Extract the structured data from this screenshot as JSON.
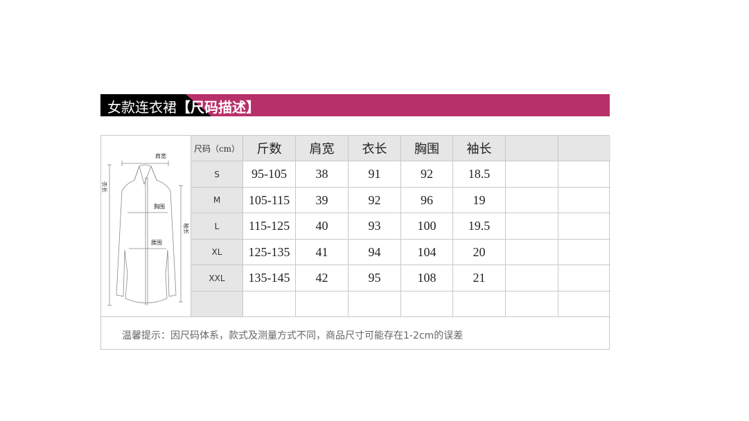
{
  "banner": {
    "title_main": "女款连衣裙",
    "title_bracket": "【尺码描述】",
    "colors": {
      "accent": "#b8306a",
      "dark": "#000000"
    }
  },
  "diagram": {
    "labels": {
      "shoulder": "肩宽",
      "chest": "胸围",
      "waist": "腰围",
      "length": "衣长",
      "sleeve": "袖长"
    }
  },
  "table": {
    "headers": [
      "尺码（cm）",
      "斤数",
      "肩宽",
      "衣长",
      "胸围",
      "袖长",
      "",
      ""
    ],
    "rows": [
      [
        "S",
        "95-105",
        "38",
        "91",
        "92",
        "18.5",
        "",
        ""
      ],
      [
        "M",
        "105-115",
        "39",
        "92",
        "96",
        "19",
        "",
        ""
      ],
      [
        "L",
        "115-125",
        "40",
        "93",
        "100",
        "19.5",
        "",
        ""
      ],
      [
        "XL",
        "125-135",
        "41",
        "94",
        "104",
        "20",
        "",
        ""
      ],
      [
        "XXL",
        "135-145",
        "42",
        "95",
        "108",
        "21",
        "",
        ""
      ],
      [
        "",
        "",
        "",
        "",
        "",
        "",
        "",
        ""
      ]
    ]
  },
  "note": "温馨提示：因尺码体系，款式及测量方式不同，商品尺寸可能存在1-2cm的误差"
}
